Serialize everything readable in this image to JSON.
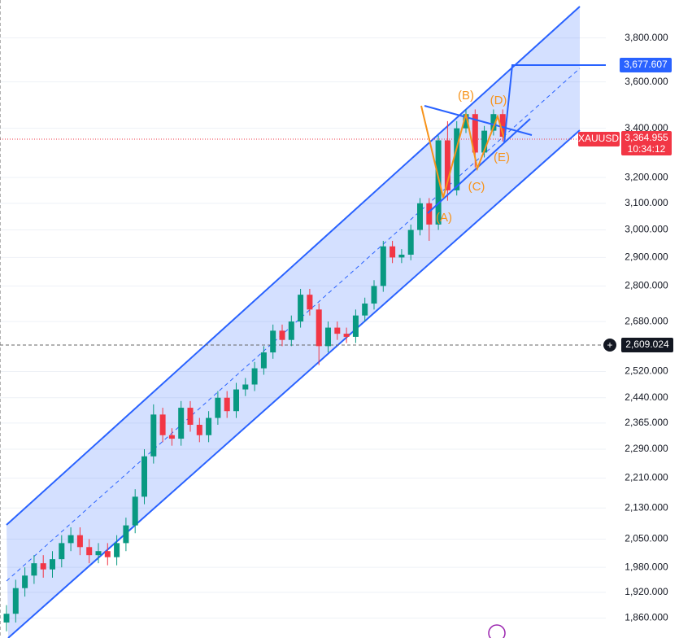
{
  "chart_data": {
    "type": "candlestick",
    "symbol": "XAUUSD",
    "last_price_label": "3,364.955",
    "countdown": "10:34:12",
    "target_label": "3,677.607",
    "crosshair_label": "2,609.024",
    "annotations": [
      "(A)",
      "(B)",
      "(C)",
      "(D)",
      "(E)"
    ],
    "log_scale": true,
    "grid": true,
    "up_color": "#089981",
    "down_color": "#f23645",
    "ylim": [
      1815,
      3982
    ],
    "yticks": [
      {
        "value": 1860,
        "label": "1,860.000"
      },
      {
        "value": 1920,
        "label": "1,920.000"
      },
      {
        "value": 1980,
        "label": "1,980.000"
      },
      {
        "value": 2050,
        "label": "2,050.000"
      },
      {
        "value": 2130,
        "label": "2,130.000"
      },
      {
        "value": 2210,
        "label": "2,210.000"
      },
      {
        "value": 2290,
        "label": "2,290.000"
      },
      {
        "value": 2365,
        "label": "2,365.000"
      },
      {
        "value": 2440,
        "label": "2,440.000"
      },
      {
        "value": 2520,
        "label": "2,520.000"
      },
      {
        "value": 2680,
        "label": "2,680.000"
      },
      {
        "value": 2800,
        "label": "2,800.000"
      },
      {
        "value": 2900,
        "label": "2,900.000"
      },
      {
        "value": 3000,
        "label": "3,000.000"
      },
      {
        "value": 3100,
        "label": "3,100.000"
      },
      {
        "value": 3200,
        "label": "3,200.000"
      },
      {
        "value": 3400,
        "label": "3,400.000"
      },
      {
        "value": 3600,
        "label": "3,600.000"
      },
      {
        "value": 3800,
        "label": "3,800.000"
      }
    ],
    "open": [
      1850,
      1870,
      1930,
      1960,
      1990,
      1975,
      2000,
      2040,
      2060,
      2030,
      2010,
      2020,
      2005,
      2040,
      2085,
      2160,
      2270,
      2390,
      2330,
      2320,
      2410,
      2360,
      2330,
      2380,
      2440,
      2400,
      2465,
      2480,
      2530,
      2580,
      2650,
      2620,
      2680,
      2770,
      2720,
      2600,
      2660,
      2640,
      2630,
      2700,
      2740,
      2800,
      2940,
      2900,
      2910,
      3000,
      3100,
      3020,
      3350,
      3150,
      3400,
      3460,
      3300,
      3390,
      3460
    ],
    "high": [
      1890,
      1950,
      1980,
      2010,
      2010,
      2020,
      2060,
      2080,
      2080,
      2050,
      2040,
      2040,
      2060,
      2105,
      2180,
      2290,
      2420,
      2410,
      2350,
      2430,
      2430,
      2380,
      2400,
      2460,
      2460,
      2485,
      2500,
      2550,
      2600,
      2670,
      2670,
      2700,
      2790,
      2790,
      2740,
      2680,
      2680,
      2660,
      2720,
      2760,
      2820,
      2960,
      2960,
      2930,
      3020,
      3120,
      3120,
      3370,
      3430,
      3430,
      3480,
      3480,
      3410,
      3480,
      3480
    ],
    "low": [
      1830,
      1850,
      1910,
      1940,
      1955,
      1955,
      1980,
      2020,
      2010,
      1990,
      1990,
      1985,
      1985,
      2020,
      2065,
      2140,
      2250,
      2310,
      2300,
      2300,
      2340,
      2310,
      2310,
      2360,
      2380,
      2380,
      2445,
      2460,
      2510,
      2560,
      2600,
      2600,
      2660,
      2700,
      2540,
      2580,
      2620,
      2610,
      2610,
      2680,
      2720,
      2780,
      2880,
      2880,
      2890,
      2980,
      2960,
      3000,
      3110,
      3130,
      3380,
      3240,
      3280,
      3370,
      3345
    ],
    "close": [
      1870,
      1930,
      1960,
      1990,
      1975,
      2000,
      2040,
      2060,
      2030,
      2010,
      2020,
      2005,
      2040,
      2085,
      2160,
      2270,
      2390,
      2330,
      2320,
      2410,
      2360,
      2330,
      2380,
      2440,
      2400,
      2465,
      2480,
      2530,
      2580,
      2650,
      2620,
      2680,
      2770,
      2720,
      2600,
      2660,
      2640,
      2630,
      2700,
      2740,
      2800,
      2940,
      2900,
      2910,
      3000,
      3100,
      3020,
      3350,
      3150,
      3400,
      3460,
      3300,
      3390,
      3460,
      3365
    ]
  }
}
